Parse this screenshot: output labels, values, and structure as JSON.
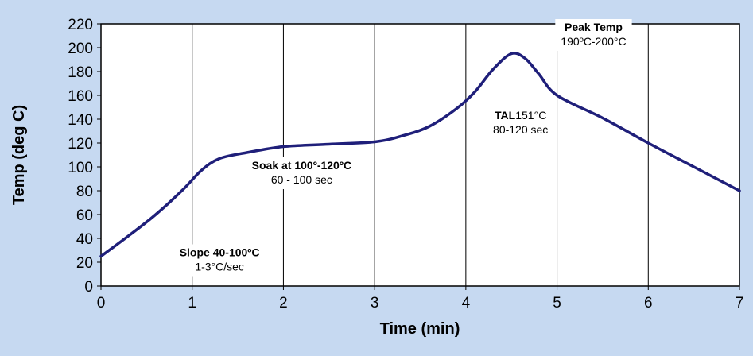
{
  "chart_data": {
    "type": "line",
    "xlabel": "Time (min)",
    "ylabel": "Temp (deg C)",
    "xlim": [
      0,
      7
    ],
    "ylim": [
      0,
      220
    ],
    "xticks": [
      "0",
      "1",
      "2",
      "3",
      "4",
      "5",
      "6",
      "7"
    ],
    "yticks": [
      "0",
      "20",
      "40",
      "60",
      "80",
      "100",
      "120",
      "140",
      "160",
      "180",
      "200",
      "220"
    ],
    "grid": "vertical",
    "series": [
      {
        "color": "#1f1f7a",
        "x": [
          0,
          0.3,
          0.6,
          0.9,
          1.1,
          1.3,
          1.6,
          2.0,
          2.5,
          3.0,
          3.3,
          3.6,
          3.9,
          4.1,
          4.3,
          4.5,
          4.65,
          4.8,
          5.0,
          5.5,
          6.0,
          6.5,
          7.0
        ],
        "y": [
          25,
          42,
          60,
          81,
          97,
          107,
          112,
          117,
          119,
          121,
          126,
          134,
          149,
          163,
          182,
          195,
          191,
          178,
          160,
          141,
          120,
          100,
          80
        ]
      }
    ],
    "annotations": [
      {
        "x": 1.3,
        "y": 23,
        "bold": "Slope 40-100ºC",
        "text": "1-3°C/sec"
      },
      {
        "x": 2.2,
        "y": 96,
        "bold": "Soak at 100º-120ºC",
        "text": "60 - 100 sec"
      },
      {
        "x": 4.6,
        "y": 138,
        "bold": "TAL",
        "bold_rest": "151°C",
        "text": "80-120 sec"
      },
      {
        "x": 5.4,
        "y": 212,
        "bold": "Peak Temp",
        "text": "190ºC-200°C"
      }
    ]
  }
}
